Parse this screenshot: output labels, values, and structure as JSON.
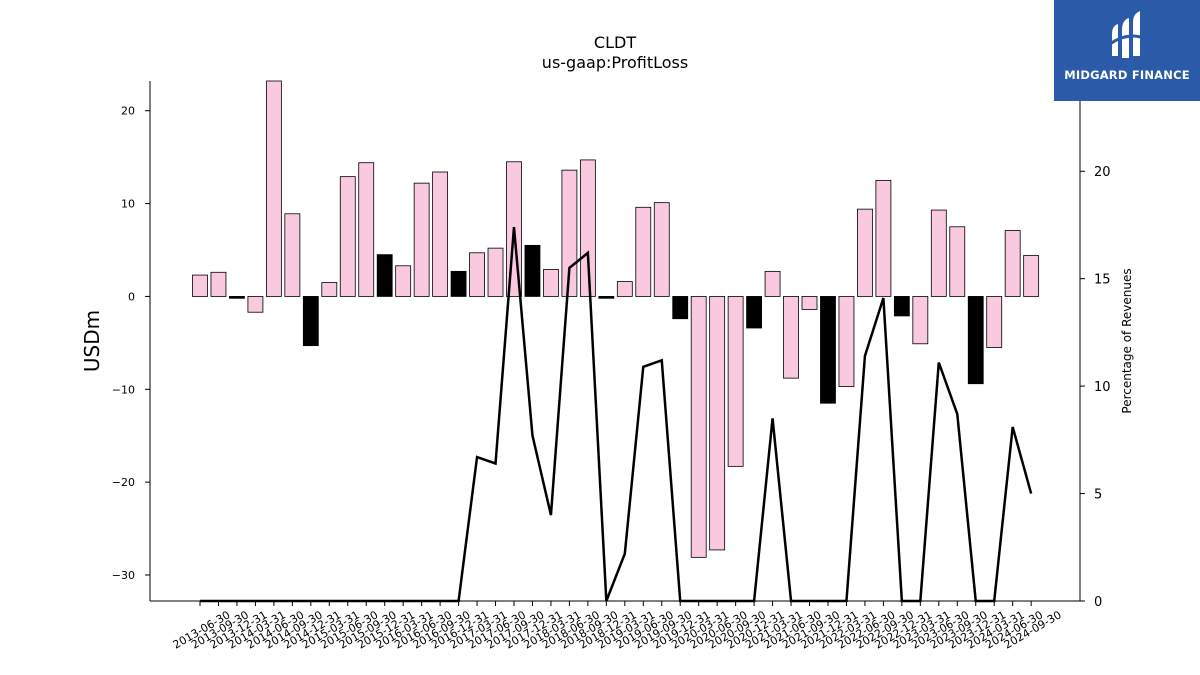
{
  "brand": {
    "name": "MIDGARD FINANCE",
    "icon": "midgard-logo-icon",
    "color": "#2a5aa8"
  },
  "chart_data": {
    "type": "bar",
    "title": "CLDT",
    "subtitle": "us-gaap:ProfitLoss",
    "ylabel": "USDm",
    "y2label": "Percentage of Revenues",
    "ylim": [
      -32.8,
      23.2
    ],
    "y2lim": [
      0,
      24.2
    ],
    "yticks": [
      20,
      10,
      0,
      -10,
      -20,
      -30
    ],
    "y2ticks": [
      20,
      15,
      10,
      5,
      0
    ],
    "grid": false,
    "legend": "none",
    "colors": {
      "positive_change": "#f9c9e0",
      "negative_change": "#000000",
      "line": "#000000"
    },
    "categories": [
      "2013-06-30",
      "2013-09-30",
      "2013-12-31",
      "2014-03-31",
      "2014-06-30",
      "2014-09-30",
      "2014-12-31",
      "2015-03-31",
      "2015-06-30",
      "2015-09-30",
      "2015-12-31",
      "2016-03-31",
      "2016-06-30",
      "2016-09-30",
      "2016-12-31",
      "2017-03-31",
      "2017-06-30",
      "2017-09-30",
      "2017-12-31",
      "2018-03-31",
      "2018-06-30",
      "2018-09-30",
      "2018-12-31",
      "2019-03-31",
      "2019-06-30",
      "2019-09-30",
      "2019-12-31",
      "2020-03-31",
      "2020-06-30",
      "2020-09-30",
      "2020-12-31",
      "2021-03-31",
      "2021-06-30",
      "2021-09-30",
      "2021-12-31",
      "2022-03-31",
      "2022-06-30",
      "2022-09-30",
      "2022-12-31",
      "2023-03-31",
      "2023-06-30",
      "2023-09-30",
      "2023-12-31",
      "2024-03-31",
      "2024-06-30",
      "2024-09-30"
    ],
    "series": [
      {
        "kind": "bar",
        "values": [
          2.3,
          2.6,
          -0.2,
          -1.7,
          23.4,
          8.9,
          -5.3,
          1.5,
          12.9,
          14.4,
          4.5,
          3.3,
          12.2,
          13.4,
          2.7,
          4.7,
          5.2,
          14.5,
          5.5,
          2.9,
          13.6,
          14.7,
          -0.2,
          1.6,
          9.6,
          10.1,
          -2.4,
          -28.1,
          -27.3,
          -18.3,
          -3.4,
          2.7,
          -8.8,
          -1.4,
          -11.5,
          -9.7,
          9.4,
          12.5,
          -2.1,
          -5.1,
          9.3,
          7.5,
          -9.4,
          -5.5,
          7.1,
          4.4
        ],
        "shade": [
          "p",
          "p",
          "k",
          "p",
          "p",
          "p",
          "k",
          "p",
          "p",
          "p",
          "k",
          "p",
          "p",
          "p",
          "k",
          "p",
          "p",
          "p",
          "k",
          "p",
          "p",
          "p",
          "k",
          "p",
          "p",
          "p",
          "k",
          "p",
          "p",
          "p",
          "k",
          "p",
          "p",
          "p",
          "k",
          "p",
          "p",
          "p",
          "k",
          "p",
          "p",
          "p",
          "k",
          "p",
          "p",
          "p"
        ]
      },
      {
        "kind": "line",
        "axis": "right",
        "values": [
          0,
          0,
          0,
          0,
          0,
          0,
          0,
          0,
          0,
          0,
          0,
          0,
          0,
          0,
          0,
          6.7,
          6.4,
          17.4,
          7.7,
          4.0,
          15.5,
          16.2,
          0,
          2.2,
          10.9,
          11.2,
          0,
          0,
          0,
          0,
          0,
          8.5,
          0,
          0,
          0,
          0,
          11.4,
          14.1,
          0,
          0,
          11.1,
          8.7,
          0,
          0,
          8.1,
          5.0
        ]
      }
    ]
  }
}
